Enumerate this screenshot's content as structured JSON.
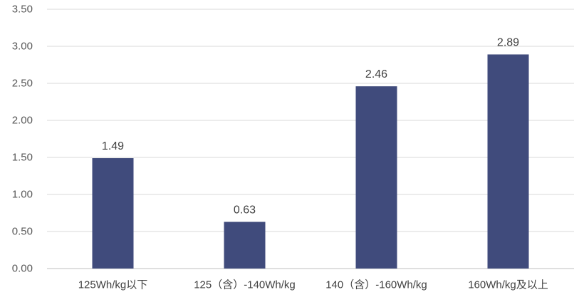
{
  "chart_data": {
    "type": "bar",
    "title": "",
    "xlabel": "",
    "ylabel": "",
    "categories": [
      "125Wh/kg以下",
      "125（含）-140Wh/kg",
      "140（含）-160Wh/kg",
      "160Wh/kg及以上"
    ],
    "values": [
      1.49,
      0.63,
      2.46,
      2.89
    ],
    "value_labels": [
      "1.49",
      "0.63",
      "2.46",
      "2.89"
    ],
    "ylim": [
      0,
      3.5
    ],
    "yticks": [
      0,
      0.5,
      1,
      1.5,
      2,
      2.5,
      3,
      3.5
    ],
    "ytick_labels": [
      "0.00",
      "0.50",
      "1.00",
      "1.50",
      "2.00",
      "2.50",
      "3.00",
      "3.50"
    ],
    "grid": true,
    "legend": "none",
    "bar_color": "#404b7c"
  }
}
